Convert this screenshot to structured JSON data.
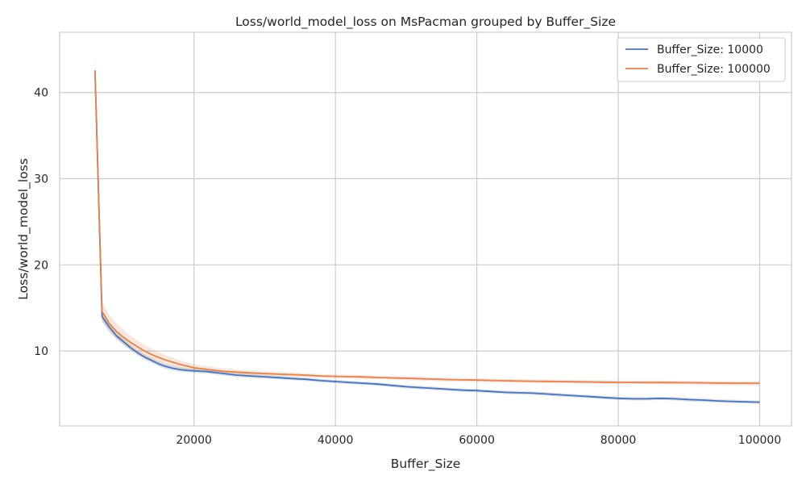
{
  "chart_data": {
    "type": "line",
    "title": "Loss/world_model_loss on MsPacman grouped by Buffer_Size",
    "xlabel": "Buffer_Size",
    "ylabel": "Loss/world_model_loss",
    "xlim": [
      1000,
      104500
    ],
    "ylim": [
      1.3,
      47
    ],
    "xticks": [
      20000,
      40000,
      60000,
      80000,
      100000
    ],
    "yticks": [
      10,
      20,
      30,
      40
    ],
    "grid": true,
    "legend_position": "top-right",
    "series": [
      {
        "name": "Buffer_Size: 10000",
        "color": "#4c72b0",
        "x": [
          6000,
          7000,
          8000,
          9000,
          10000,
          11000,
          12000,
          13000,
          14000,
          15000,
          16000,
          17000,
          18000,
          19000,
          20000,
          22000,
          24000,
          26000,
          28000,
          30000,
          32000,
          34000,
          36000,
          38000,
          40000,
          42000,
          44000,
          46000,
          48000,
          50000,
          52000,
          54000,
          56000,
          58000,
          60000,
          62000,
          64000,
          66000,
          68000,
          70000,
          72000,
          74000,
          76000,
          78000,
          80000,
          82000,
          84000,
          86000,
          88000,
          90000,
          92000,
          94000,
          96000,
          98000,
          100000
        ],
        "y": [
          42.3,
          14.0,
          12.8,
          11.8,
          11.1,
          10.4,
          9.8,
          9.3,
          8.9,
          8.5,
          8.2,
          8.0,
          7.85,
          7.75,
          7.7,
          7.6,
          7.4,
          7.2,
          7.1,
          7.0,
          6.9,
          6.8,
          6.7,
          6.55,
          6.45,
          6.35,
          6.25,
          6.15,
          6.0,
          5.85,
          5.75,
          5.65,
          5.55,
          5.45,
          5.4,
          5.3,
          5.2,
          5.15,
          5.1,
          5.0,
          4.9,
          4.8,
          4.7,
          4.6,
          4.5,
          4.45,
          4.45,
          4.5,
          4.45,
          4.35,
          4.3,
          4.2,
          4.15,
          4.1,
          4.05
        ],
        "band": [
          0.5,
          0.5,
          0.45,
          0.4,
          0.38,
          0.35,
          0.33,
          0.32,
          0.3,
          0.3,
          0.3,
          0.28,
          0.27,
          0.26,
          0.25,
          0.25,
          0.24,
          0.23,
          0.22,
          0.22,
          0.21,
          0.2,
          0.2,
          0.2,
          0.2,
          0.2,
          0.2,
          0.2,
          0.2,
          0.2,
          0.2,
          0.2,
          0.2,
          0.2,
          0.2,
          0.2,
          0.2,
          0.2,
          0.2,
          0.2,
          0.2,
          0.2,
          0.2,
          0.2,
          0.2,
          0.2,
          0.2,
          0.2,
          0.2,
          0.2,
          0.2,
          0.2,
          0.2,
          0.2,
          0.2
        ]
      },
      {
        "name": "Buffer_Size: 100000",
        "color": "#dd8452",
        "x": [
          6000,
          7000,
          8000,
          9000,
          10000,
          11000,
          12000,
          13000,
          14000,
          15000,
          16000,
          17000,
          18000,
          19000,
          20000,
          22000,
          24000,
          26000,
          28000,
          30000,
          32000,
          34000,
          36000,
          38000,
          40000,
          42000,
          44000,
          46000,
          48000,
          50000,
          52000,
          54000,
          56000,
          58000,
          60000,
          62000,
          64000,
          66000,
          68000,
          70000,
          72000,
          74000,
          76000,
          78000,
          80000,
          82000,
          84000,
          86000,
          88000,
          90000,
          92000,
          94000,
          96000,
          98000,
          100000
        ],
        "y": [
          42.6,
          14.6,
          13.2,
          12.3,
          11.6,
          11.0,
          10.5,
          10.0,
          9.6,
          9.25,
          8.95,
          8.7,
          8.45,
          8.25,
          8.05,
          7.85,
          7.65,
          7.55,
          7.45,
          7.38,
          7.3,
          7.25,
          7.18,
          7.1,
          7.05,
          7.02,
          6.98,
          6.92,
          6.87,
          6.83,
          6.78,
          6.73,
          6.68,
          6.65,
          6.62,
          6.58,
          6.54,
          6.51,
          6.49,
          6.47,
          6.45,
          6.42,
          6.4,
          6.38,
          6.36,
          6.35,
          6.34,
          6.34,
          6.33,
          6.32,
          6.3,
          6.28,
          6.26,
          6.25,
          6.25
        ],
        "band": [
          1.6,
          1.2,
          1.0,
          0.9,
          0.85,
          0.8,
          0.75,
          0.7,
          0.65,
          0.6,
          0.55,
          0.5,
          0.45,
          0.42,
          0.4,
          0.36,
          0.32,
          0.3,
          0.28,
          0.26,
          0.25,
          0.24,
          0.23,
          0.22,
          0.22,
          0.22,
          0.22,
          0.22,
          0.22,
          0.22,
          0.22,
          0.22,
          0.22,
          0.22,
          0.22,
          0.22,
          0.22,
          0.22,
          0.22,
          0.22,
          0.22,
          0.22,
          0.22,
          0.22,
          0.22,
          0.22,
          0.22,
          0.22,
          0.22,
          0.22,
          0.22,
          0.22,
          0.24,
          0.26,
          0.28
        ]
      }
    ]
  }
}
